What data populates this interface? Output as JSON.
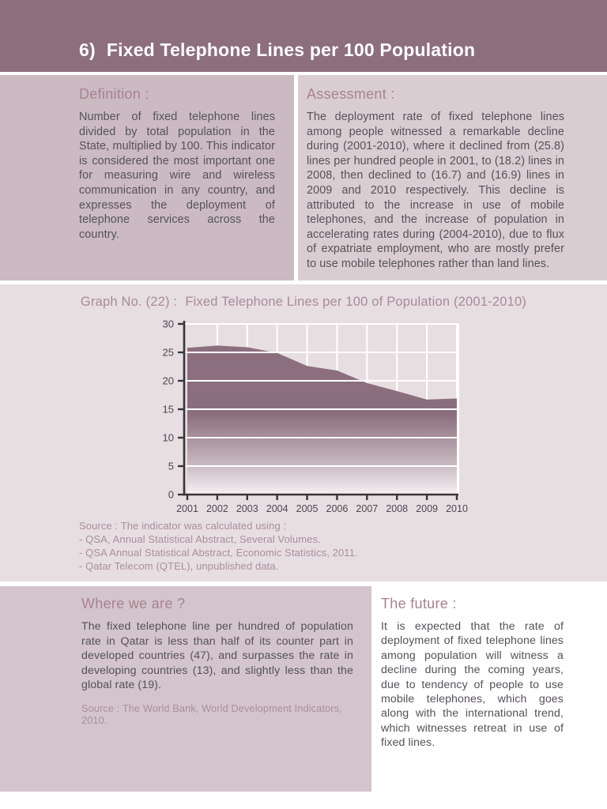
{
  "header": {
    "number": "6)",
    "title": "Fixed Telephone Lines per 100 Population"
  },
  "definition": {
    "heading": "Definition :",
    "body": "Number of fixed telephone lines divided by total population in the State, multiplied by 100. This indicator is considered the most important one for measuring wire and wireless communication in any country, and expresses the deployment of telephone services across the country."
  },
  "assessment": {
    "heading": "Assessment :",
    "body": "The deployment rate of fixed telephone lines among people witnessed a remarkable decline during (2001-2010), where it declined from (25.8) lines per hundred people in 2001, to (18.2) lines in 2008, then declined to (16.7) and (16.9) lines in 2009 and 2010 respectively. This decline is attributed to the increase in use of mobile telephones, and the increase of population in accelerating rates during (2004-2010), due to flux of expatriate employment, who are mostly prefer to use mobile telephones rather than land lines."
  },
  "graph": {
    "title_label": "Graph No. (22) :",
    "title_text": "Fixed Telephone Lines per 100 of Population (2001-2010)",
    "source_intro": "Source : The indicator was calculated using :",
    "source_items": [
      "-  QSA, Annual Statistical Abstract, Several Volumes.",
      "-  QSA Annual Statistical Abstract, Economic Statistics, 2011.",
      "-  Qatar Telecom (QTEL), unpublished data."
    ]
  },
  "chart_data": {
    "type": "area",
    "title": "Graph No. (22) : Fixed Telephone Lines per 100 of Population (2001-2010)",
    "categories": [
      "2001",
      "2002",
      "2003",
      "2004",
      "2005",
      "2006",
      "2007",
      "2008",
      "2009",
      "2010"
    ],
    "values": [
      25.8,
      26.2,
      25.9,
      24.9,
      22.6,
      21.8,
      19.6,
      18.2,
      16.7,
      16.9
    ],
    "xlabel": "",
    "ylabel": "",
    "ylim": [
      0,
      30
    ],
    "yticks": [
      0,
      5,
      10,
      15,
      20,
      25,
      30
    ],
    "grid": true,
    "legend": "none",
    "gridline_color": "#ffffff",
    "axis_color": "#39343a",
    "tick_label_color": "#4b4650",
    "fill_gradient": [
      [
        "0%",
        "#8c6f7e"
      ],
      [
        "46%",
        "#8b6e7d"
      ],
      [
        "80%",
        "#c9bac1"
      ],
      [
        "100%",
        "#f6f1f3"
      ]
    ]
  },
  "where_we_are": {
    "heading": "Where we are ?",
    "body": "The fixed telephone line per hundred of population rate in Qatar is less than half of its counter part in developed countries (47), and surpasses the rate in developing countries (13), and slightly less than the global rate (19).",
    "source": "Source : The World Bank, World Development Indicators, 2010."
  },
  "future": {
    "heading": "The future :",
    "body": "It is expected that the rate of deployment of fixed telephone lines among population will witness a decline during the coming years, due to tendency of people to use mobile telephones, which goes along with the international trend, which witnesses retreat in use of fixed lines."
  },
  "colors": {
    "header_band": "#8d6e7d",
    "header_text": "#ffffff",
    "definition_bg": "#cbbac1",
    "assessment_bg": "#d9cdd2",
    "graph_section_bg": "#e7dee1",
    "where_bg": "#d3c5cb",
    "heading_text": "#a8838f",
    "body_text": "#565159",
    "source_text": "#aa8f9b",
    "area_fill_top": "#8c6f7e"
  }
}
